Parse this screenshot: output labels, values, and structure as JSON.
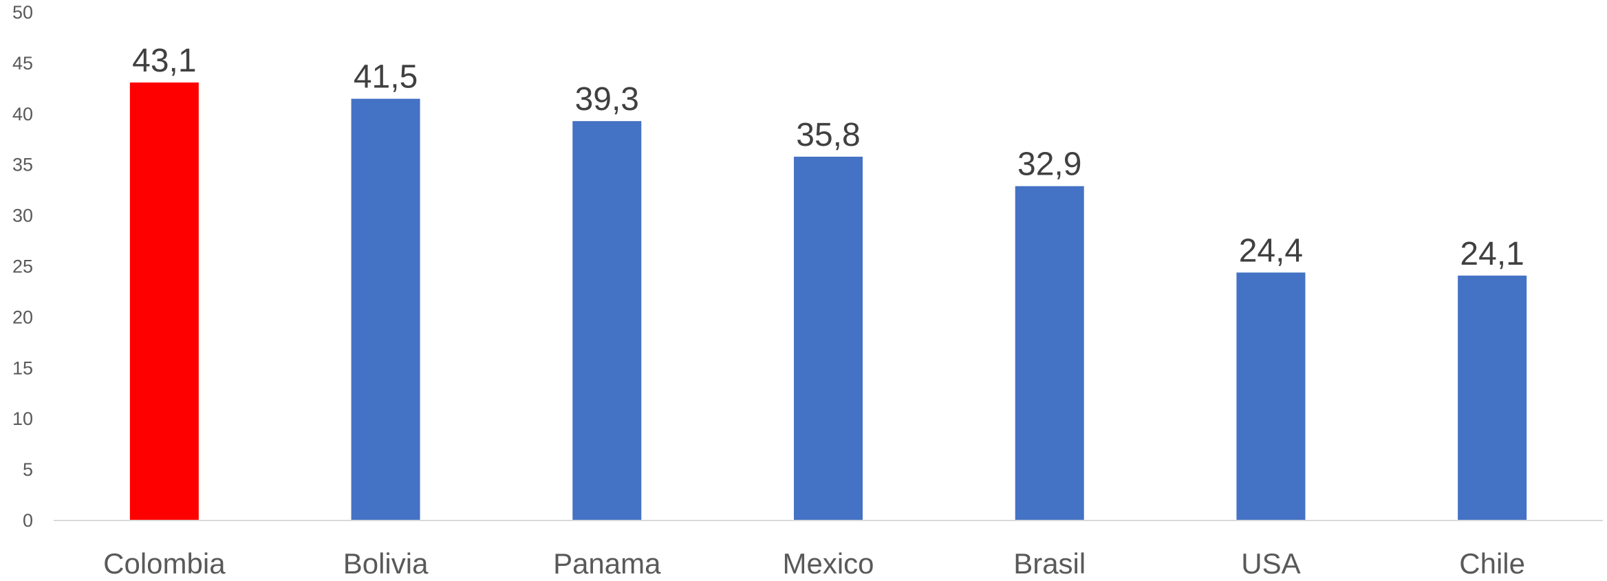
{
  "chart_data": {
    "type": "bar",
    "title": "",
    "xlabel": "",
    "ylabel": "",
    "categories": [
      "Colombia",
      "Bolivia",
      "Panama",
      "Mexico",
      "Brasil",
      "USA",
      "Chile"
    ],
    "values": [
      43.1,
      41.5,
      39.3,
      35.8,
      32.9,
      24.4,
      24.1
    ],
    "data_labels": [
      "43,1",
      "41,5",
      "39,3",
      "35,8",
      "32,9",
      "24,4",
      "24,1"
    ],
    "y_ticks": [
      "0",
      "5",
      "10",
      "15",
      "20",
      "25",
      "30",
      "35",
      "40",
      "45",
      "50"
    ],
    "ylim": [
      0,
      50
    ],
    "grid": false,
    "legend": "none",
    "colors": {
      "default_bar": "#4472C4",
      "highlight_bar": "#FF0000",
      "highlight_category": "Colombia",
      "axis_line": "#D9D9D9"
    }
  }
}
